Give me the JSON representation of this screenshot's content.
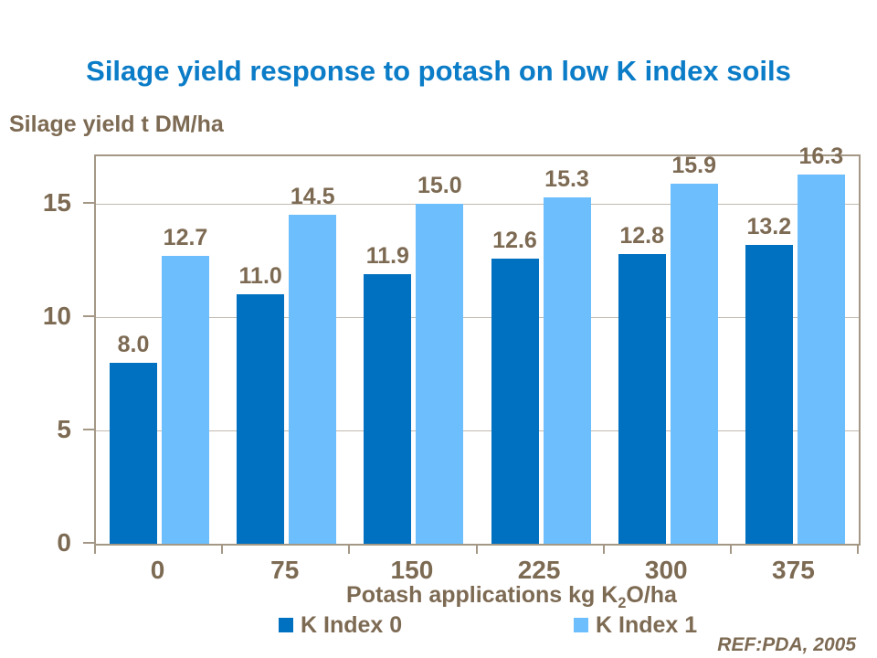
{
  "title": "Silage yield response to potash on low K index soils",
  "ylabel": "Silage yield t DM/ha",
  "xlabel": {
    "prefix": "Potash applications kg K",
    "sub": "2",
    "suffix": "O/ha"
  },
  "ref_note": "REF:PDA, 2005",
  "colors": {
    "title_blue": "#0B7CC7",
    "series_dark_blue": "#0070C0",
    "series_light_blue": "#6CBEFC",
    "text_brown": "#7D6A53",
    "axis_border": "#A49786",
    "gridline": "#C2BAB0"
  },
  "chart_data": {
    "type": "bar",
    "title": "Silage yield response to potash on low K index soils",
    "ylabel": "Silage yield t DM/ha",
    "xlabel": "Potash applications kg K2O/ha",
    "categories": [
      "0",
      "75",
      "150",
      "225",
      "300",
      "375"
    ],
    "series": [
      {
        "name": "K Index 0",
        "color": "#0070C0",
        "values": [
          8.0,
          11.0,
          11.9,
          12.6,
          12.8,
          13.2
        ]
      },
      {
        "name": "K Index 1",
        "color": "#6CBEFC",
        "values": [
          12.7,
          14.5,
          15.0,
          15.3,
          15.9,
          16.3
        ]
      }
    ],
    "value_label_decimals": 1,
    "yticks": [
      0,
      5,
      10,
      15
    ],
    "ylim": [
      0,
      17.1
    ],
    "grid": "horizontal",
    "legend_position": "bottom"
  }
}
